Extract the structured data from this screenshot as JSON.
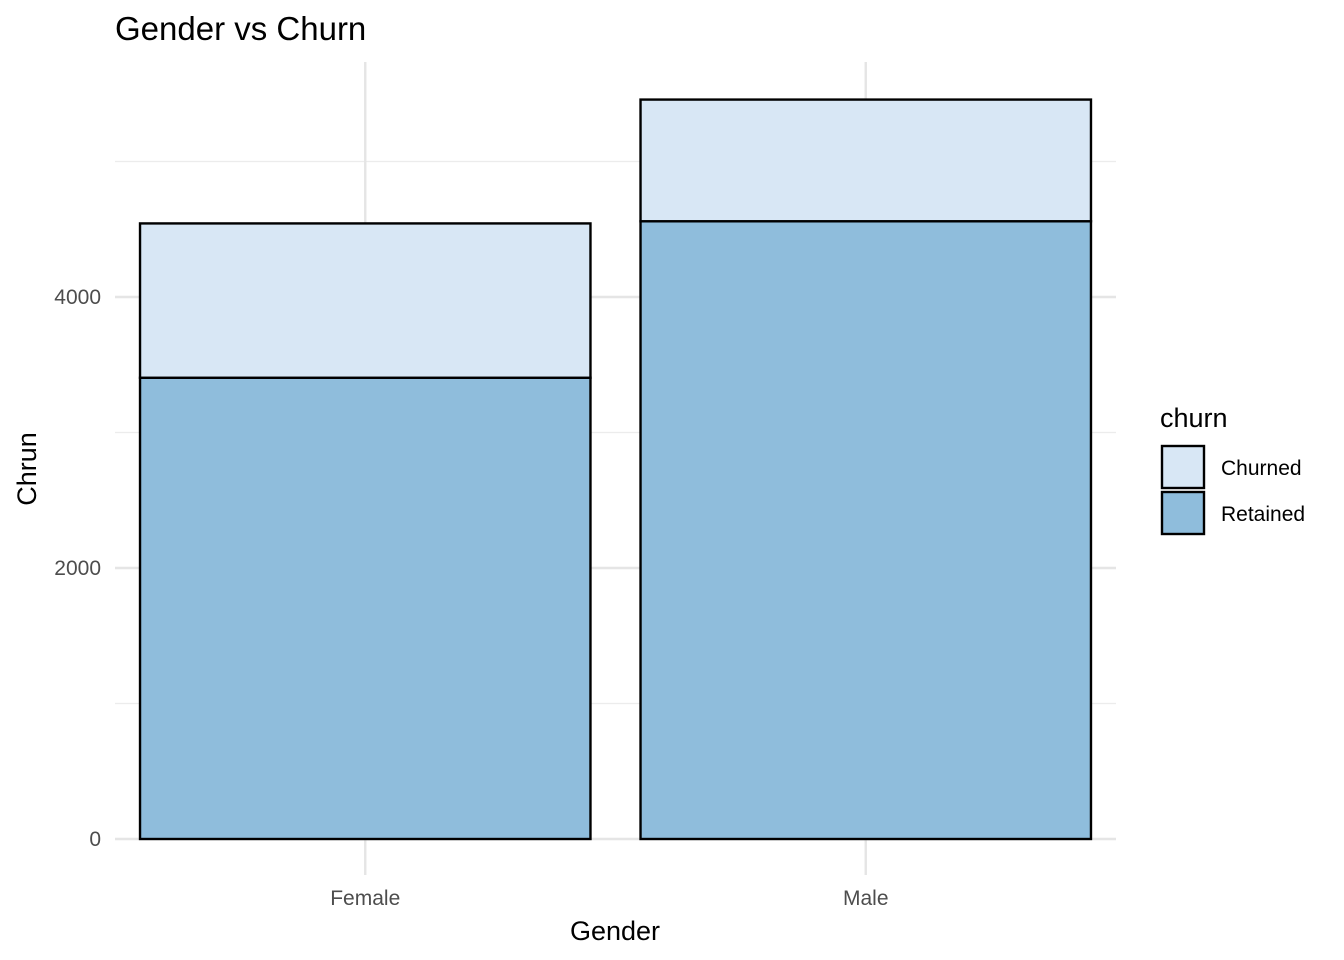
{
  "chart_data": {
    "type": "bar",
    "stacked": true,
    "title": "Gender vs Churn",
    "xlabel": "Gender",
    "ylabel": "Chrun",
    "categories": [
      "Female",
      "Male"
    ],
    "series": [
      {
        "name": "Retained",
        "color": "#8FBDDC",
        "values": [
          3404,
          4559
        ]
      },
      {
        "name": "Churned",
        "color": "#D8E7F5",
        "values": [
          1139,
          898
        ]
      }
    ],
    "ylim": [
      0,
      5730
    ],
    "yticks": [
      0,
      2000,
      4000
    ],
    "ytick_labels": [
      "0",
      "2000",
      "4000"
    ],
    "grid": true,
    "legend": {
      "title": "churn",
      "position": "right",
      "entries": [
        "Churned",
        "Retained"
      ]
    }
  }
}
